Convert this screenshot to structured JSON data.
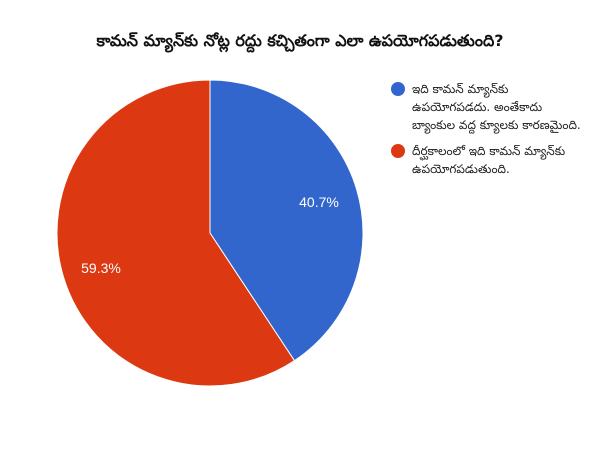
{
  "chart_data": {
    "type": "pie",
    "title": "కామన్ మ్యాన్‌కు నోట్ల రద్దు కచ్చితంగా ఎలా ఉపయోగపడుతుంది?",
    "categories": [
      "ఇది కామన్ మ్యాన్‌కు ఉపయోగపడదు. అంతేకాదు బ్యాంకుల వద్ద క్యూలకు కారణమైంది.",
      "దీర్ఘకాలంలో ఇది కామన్ మ్యాన్‌కు ఉపయోగపడుతుంది."
    ],
    "values": [
      40.7,
      59.3
    ],
    "value_labels": [
      "40.7%",
      "59.3%"
    ],
    "colors": [
      "#3366CC",
      "#DC3912"
    ],
    "legend_position": "right",
    "start_angle_deg": 0,
    "direction": "clockwise"
  },
  "legend": {
    "items": [
      {
        "label": "ఇది కామన్ మ్యాన్‌కు ఉపయోగపడదు. అంతేకాదు బ్యాంకుల వద్ద క్యూలకు కారణమైంది.",
        "color": "#3366CC"
      },
      {
        "label": "దీర్ఘకాలంలో ఇది కామన్ మ్యాన్‌కు ఉపయోగపడుతుంది.",
        "color": "#DC3912"
      }
    ]
  },
  "slices": [
    {
      "label": "40.7%",
      "color": "#3366CC"
    },
    {
      "label": "59.3%",
      "color": "#DC3912"
    }
  ]
}
